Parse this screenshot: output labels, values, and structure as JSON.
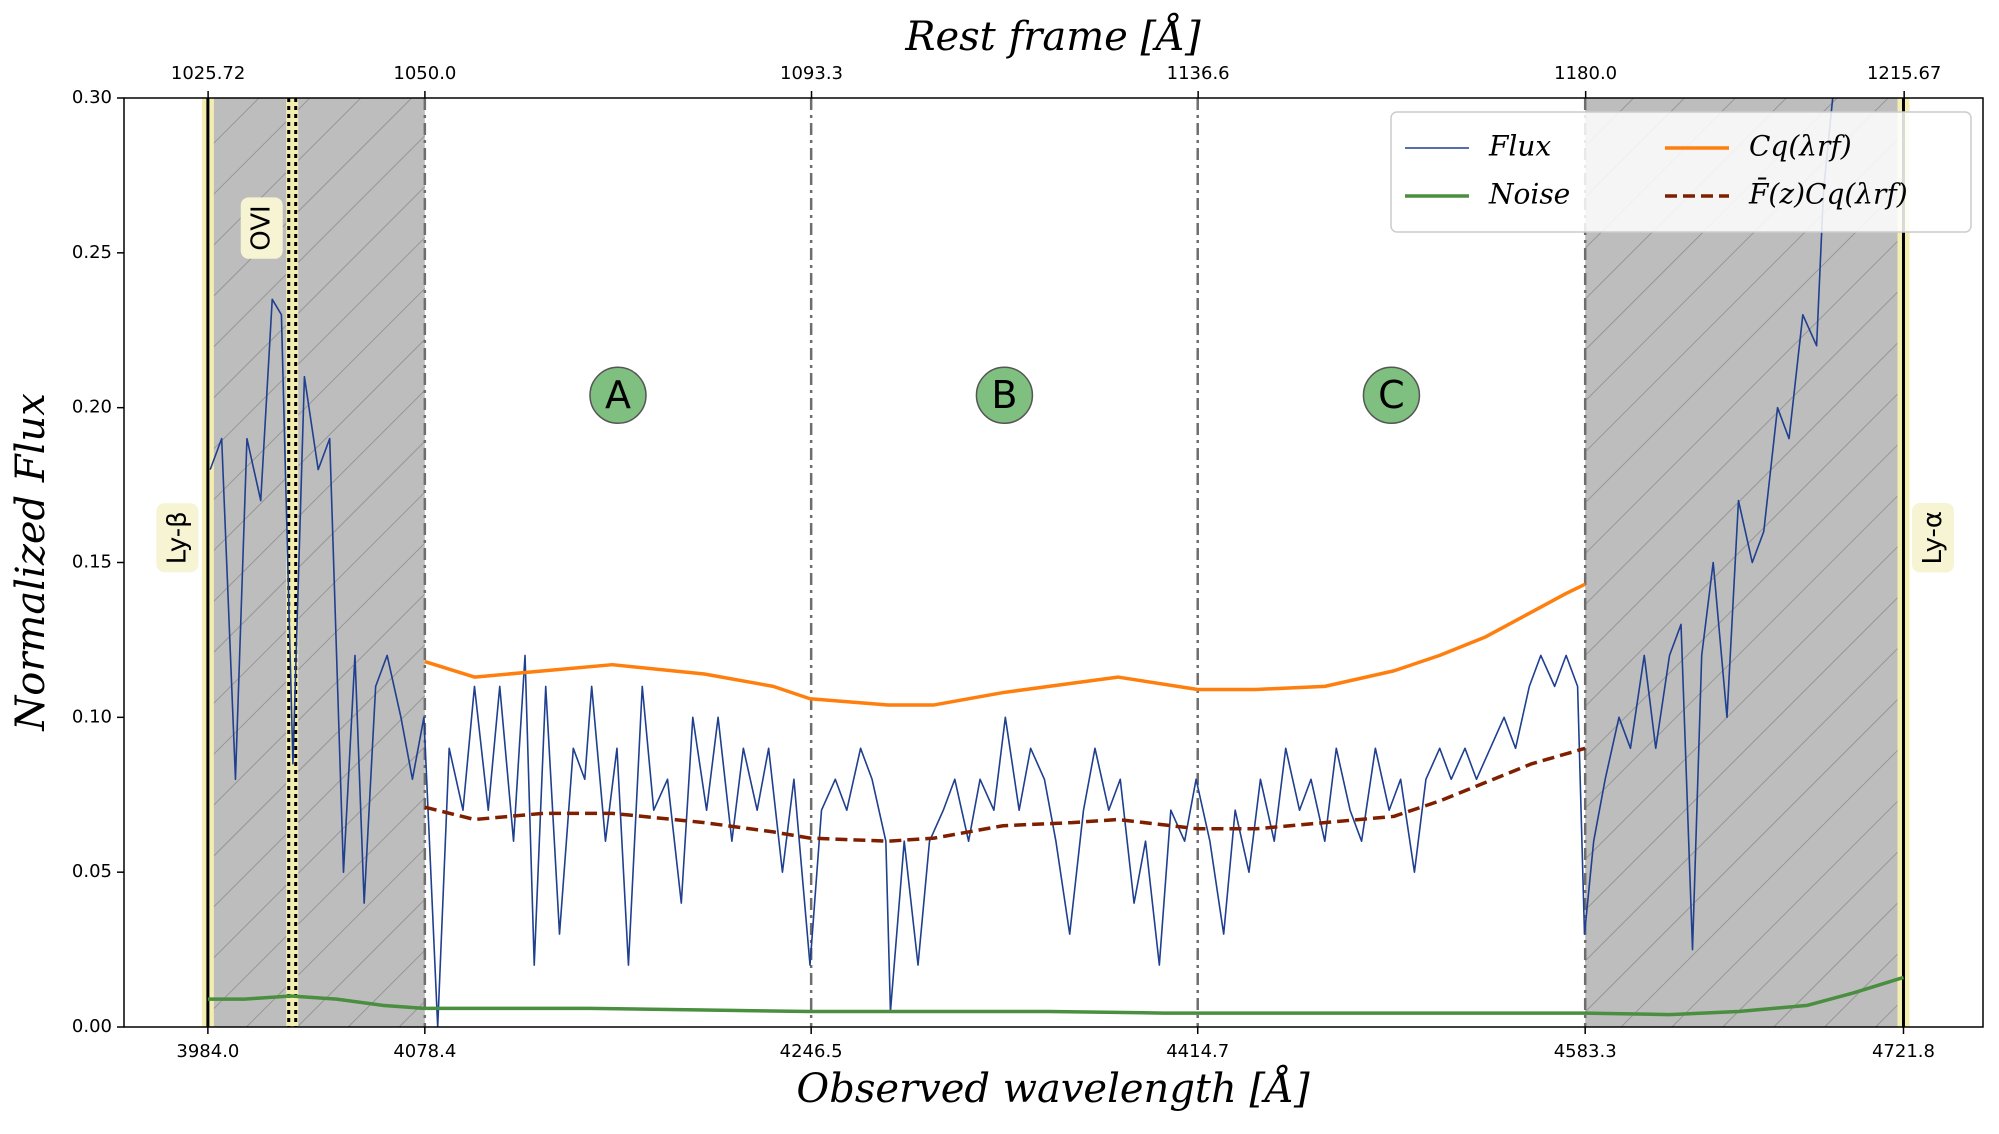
{
  "chart_data": {
    "type": "line",
    "xlabel": "Observed wavelength [Å]",
    "ylabel": "Normalized Flux",
    "x2label": "Rest frame [Å]",
    "xlim": [
      3947.5,
      4756.4
    ],
    "xticks": [
      {
        "value": 3984.0,
        "label": "3984.0"
      },
      4078.4,
      4246.5,
      4414.7,
      4583.3,
      4721.8
    ],
    "x2lim": [
      1016.3,
      1224.5
    ],
    "x2ticks": [
      1025.72,
      {
        "value": 1050.0,
        "label": "1050.0"
      },
      1093.3,
      1136.6,
      {
        "value": 1180.0,
        "label": "1180.0"
      },
      1215.67
    ],
    "ylim": [
      0,
      0.3
    ],
    "yticks": [
      {
        "value": 0,
        "label": "0.00"
      },
      {
        "value": 0.05,
        "label": "0.05"
      },
      {
        "value": 0.1,
        "label": "0.10"
      },
      {
        "value": 0.15,
        "label": "0.15"
      },
      {
        "value": 0.2,
        "label": "0.20"
      },
      {
        "value": 0.25,
        "label": "0.25"
      },
      {
        "value": 0.3,
        "label": "0.30"
      }
    ],
    "legend": "upper right",
    "legend_columns": 2,
    "masked_ranges": [
      [
        3984.0,
        4078.4
      ],
      [
        4583.3,
        4721.8
      ]
    ],
    "region_bounds": [
      4078.4,
      4246.5,
      4414.7,
      4583.3
    ],
    "regions": [
      {
        "label": "A",
        "y": 0.204
      },
      {
        "label": "B",
        "y": 0.204
      },
      {
        "label": "C",
        "y": 0.204
      }
    ],
    "emission_lines": [
      {
        "label": "Ly-β",
        "x": 3984.0,
        "label_y": 0.158,
        "style": "solid"
      },
      {
        "label": "OVI",
        "x": 4020.7,
        "label_y": 0.258,
        "style": "dotted"
      },
      {
        "label": "Ly-α",
        "x": 4721.8,
        "label_y": 0.158,
        "style": "solid"
      }
    ],
    "series": [
      {
        "name": "Flux",
        "color": "#1f3f8f",
        "linewidth": 1.6,
        "x": [
          3985,
          3990,
          3996,
          4001,
          4007,
          4012,
          4016,
          4021,
          4026,
          4032,
          4037,
          4043,
          4048,
          4052,
          4057,
          4062,
          4068,
          4073,
          4078,
          4084,
          4089,
          4095,
          4100,
          4106,
          4111,
          4117,
          4122,
          4126,
          4131,
          4137,
          4143,
          4148,
          4151,
          4157,
          4162,
          4167,
          4173,
          4178,
          4184,
          4190,
          4195,
          4201,
          4206,
          4212,
          4217,
          4223,
          4228,
          4234,
          4239,
          4246,
          4251,
          4257,
          4262,
          4268,
          4273,
          4279,
          4281,
          4287,
          4293,
          4298,
          4304,
          4309,
          4315,
          4320,
          4326,
          4331,
          4337,
          4342,
          4348,
          4353,
          4359,
          4365,
          4370,
          4376,
          4381,
          4387,
          4392,
          4398,
          4403,
          4409,
          4414,
          4420,
          4426,
          4431,
          4437,
          4442,
          4448,
          4453,
          4459,
          4464,
          4470,
          4475,
          4481,
          4486,
          4492,
          4498,
          4503,
          4509,
          4514,
          4520,
          4525,
          4531,
          4536,
          4542,
          4548,
          4553,
          4559,
          4564,
          4570,
          4575,
          4580,
          4583,
          4587,
          4592,
          4598,
          4603,
          4609,
          4614,
          4620,
          4625,
          4630,
          4634,
          4639,
          4645,
          4650,
          4656,
          4661,
          4667,
          4672,
          4678,
          4684,
          4687,
          4691
        ],
        "values": [
          0.18,
          0.19,
          0.08,
          0.19,
          0.17,
          0.235,
          0.23,
          0.085,
          0.21,
          0.18,
          0.19,
          0.05,
          0.12,
          0.04,
          0.11,
          0.12,
          0.1,
          0.08,
          0.1,
          0.0,
          0.09,
          0.07,
          0.11,
          0.07,
          0.11,
          0.06,
          0.12,
          0.02,
          0.11,
          0.03,
          0.09,
          0.08,
          0.11,
          0.06,
          0.09,
          0.02,
          0.11,
          0.07,
          0.08,
          0.04,
          0.1,
          0.07,
          0.1,
          0.06,
          0.09,
          0.07,
          0.09,
          0.05,
          0.08,
          0.02,
          0.07,
          0.08,
          0.07,
          0.09,
          0.08,
          0.06,
          0.005,
          0.06,
          0.02,
          0.06,
          0.07,
          0.08,
          0.06,
          0.08,
          0.07,
          0.1,
          0.07,
          0.09,
          0.08,
          0.06,
          0.03,
          0.07,
          0.09,
          0.07,
          0.08,
          0.04,
          0.06,
          0.02,
          0.07,
          0.06,
          0.08,
          0.06,
          0.03,
          0.07,
          0.05,
          0.08,
          0.06,
          0.09,
          0.07,
          0.08,
          0.06,
          0.09,
          0.07,
          0.06,
          0.09,
          0.07,
          0.08,
          0.05,
          0.08,
          0.09,
          0.08,
          0.09,
          0.08,
          0.09,
          0.1,
          0.09,
          0.11,
          0.12,
          0.11,
          0.12,
          0.11,
          0.03,
          0.06,
          0.08,
          0.1,
          0.09,
          0.12,
          0.09,
          0.12,
          0.13,
          0.025,
          0.12,
          0.15,
          0.1,
          0.17,
          0.15,
          0.16,
          0.2,
          0.19,
          0.23,
          0.22,
          0.27,
          0.3
        ]
      },
      {
        "name": "Noise",
        "color": "#4a8f3f",
        "linewidth": 3.5,
        "x": [
          3984,
          4000,
          4020,
          4040,
          4060,
          4078,
          4100,
          4150,
          4200,
          4246,
          4300,
          4350,
          4400,
          4450,
          4500,
          4583,
          4620,
          4650,
          4680,
          4700,
          4721.8
        ],
        "values": [
          0.009,
          0.009,
          0.01,
          0.009,
          0.007,
          0.006,
          0.006,
          0.006,
          0.0055,
          0.005,
          0.005,
          0.005,
          0.0045,
          0.0045,
          0.0045,
          0.0045,
          0.004,
          0.005,
          0.007,
          0.011,
          0.016
        ]
      },
      {
        "name": "Cq(λrf)",
        "color": "#ff7f0e",
        "linewidth": 3.5,
        "x": [
          4078.4,
          4100,
          4130,
          4160,
          4200,
          4230,
          4246,
          4280,
          4300,
          4330,
          4360,
          4380,
          4414.7,
          4440,
          4470,
          4500,
          4520,
          4540,
          4560,
          4575,
          4583.3
        ],
        "values": [
          0.118,
          0.113,
          0.115,
          0.117,
          0.114,
          0.11,
          0.106,
          0.104,
          0.104,
          0.108,
          0.111,
          0.113,
          0.109,
          0.109,
          0.11,
          0.115,
          0.12,
          0.126,
          0.134,
          0.14,
          0.143
        ]
      },
      {
        "name": "F̄(z)Cq(λrf)",
        "color": "#7f1f00",
        "linewidth": 3.5,
        "linestyle": "dashed",
        "x": [
          4078.4,
          4100,
          4130,
          4160,
          4200,
          4230,
          4246,
          4280,
          4300,
          4330,
          4360,
          4380,
          4414.7,
          4440,
          4470,
          4500,
          4520,
          4540,
          4560,
          4583.3
        ],
        "values": [
          0.071,
          0.067,
          0.069,
          0.069,
          0.066,
          0.063,
          0.061,
          0.06,
          0.061,
          0.065,
          0.066,
          0.067,
          0.064,
          0.064,
          0.066,
          0.068,
          0.073,
          0.079,
          0.085,
          0.09
        ]
      }
    ]
  }
}
